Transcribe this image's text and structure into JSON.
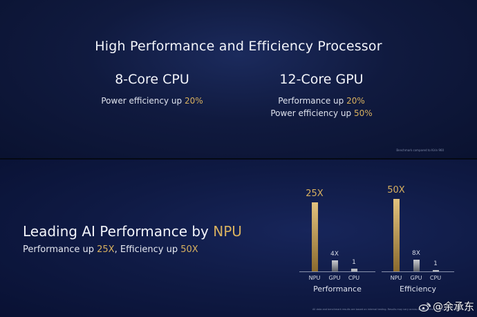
{
  "slide_top": {
    "title": "High Performance and Efficiency Processor",
    "cpu": {
      "heading": "8-Core CPU",
      "line1_prefix": "Power efficiency up ",
      "line1_value": "20%"
    },
    "gpu": {
      "heading": "12-Core GPU",
      "line1_prefix": "Performance up ",
      "line1_value": "20%",
      "line2_prefix": "Power efficiency up ",
      "line2_value": "50%"
    },
    "footnote": "Benchmark compared to Kirin 960"
  },
  "slide_bottom": {
    "title_prefix": "Leading AI Performance by ",
    "title_highlight": "NPU",
    "subtitle_a": "Performance up ",
    "subtitle_a_value": "25X",
    "subtitle_b": ", Efficiency up ",
    "subtitle_b_value": "50X",
    "footnote": "All data and benchmark results are based on internal testing. Results may vary across different test versions and environments."
  },
  "chart_data": [
    {
      "type": "bar",
      "title": "Performance",
      "categories": [
        "NPU",
        "GPU",
        "CPU"
      ],
      "values": [
        25,
        4,
        1
      ],
      "value_labels": [
        "25X",
        "4X",
        "1"
      ]
    },
    {
      "type": "bar",
      "title": "Efficiency",
      "categories": [
        "NPU",
        "GPU",
        "CPU"
      ],
      "values": [
        50,
        8,
        1
      ],
      "value_labels": [
        "50X",
        "8X",
        "1"
      ]
    }
  ],
  "watermark": {
    "icon": "weibo-icon",
    "handle": "@余承东"
  },
  "colors": {
    "accent_gold": "#d9b15f",
    "background": "#0a1230"
  }
}
